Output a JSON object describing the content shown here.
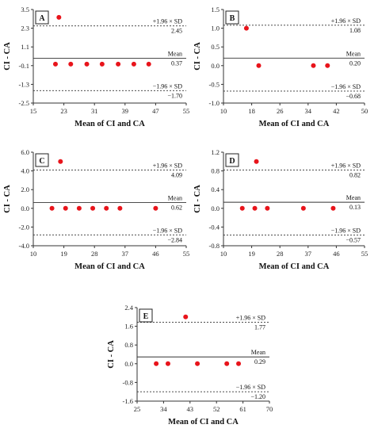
{
  "chart_data": [
    {
      "type": "scatter",
      "panel_label": "A",
      "xlabel": "Mean of CI and CA",
      "ylabel": "CI - CA",
      "xlim": [
        15,
        55
      ],
      "ylim": [
        -2.5,
        3.5
      ],
      "x_ticks": [
        15,
        23,
        31,
        39,
        47,
        55
      ],
      "y_ticks": [
        -2.5,
        -1.3,
        -0.1,
        1.1,
        2.3,
        3.5
      ],
      "y_tick_labels": [
        "-2.5",
        "-1.3",
        "-0.1",
        "1.1",
        "2.3",
        "3.5"
      ],
      "upper_loa_label": "+1.96 × SD",
      "upper_loa": 2.45,
      "upper_loa_text": "2.45",
      "mean_label": "Mean",
      "mean": 0.37,
      "mean_text": "0.37",
      "lower_loa_label": "−1.96 × SD",
      "lower_loa": -1.7,
      "lower_loa_text": "−1.70",
      "points": [
        [
          21.7,
          3.0
        ],
        [
          20.8,
          0.0
        ],
        [
          24.8,
          0.0
        ],
        [
          29.0,
          0.0
        ],
        [
          33.0,
          0.0
        ],
        [
          37.2,
          0.0
        ],
        [
          41.3,
          0.0
        ],
        [
          45.2,
          0.0
        ]
      ]
    },
    {
      "type": "scatter",
      "panel_label": "B",
      "xlabel": "Mean of CI and CA",
      "ylabel": "CI - CA",
      "xlim": [
        10,
        50
      ],
      "ylim": [
        -1.0,
        1.5
      ],
      "x_ticks": [
        10,
        18,
        26,
        34,
        42,
        50
      ],
      "y_ticks": [
        -1.0,
        -0.5,
        0.0,
        0.5,
        1.0,
        1.5
      ],
      "y_tick_labels": [
        "-1.0",
        "-0.5",
        "0.0",
        "0.5",
        "1.0",
        "1.5"
      ],
      "upper_loa_label": "+1.96 × SD",
      "upper_loa": 1.08,
      "upper_loa_text": "1.08",
      "mean_label": "Mean",
      "mean": 0.2,
      "mean_text": "0.20",
      "lower_loa_label": "−1.96 × SD",
      "lower_loa": -0.68,
      "lower_loa_text": "−0.68",
      "points": [
        [
          16.5,
          1.0
        ],
        [
          20.0,
          0.0
        ],
        [
          35.5,
          0.0
        ],
        [
          39.5,
          0.0
        ]
      ]
    },
    {
      "type": "scatter",
      "panel_label": "C",
      "xlabel": "Mean of CI and CA",
      "ylabel": "CI - CA",
      "xlim": [
        10,
        55
      ],
      "ylim": [
        -4.0,
        6.0
      ],
      "x_ticks": [
        10,
        19,
        28,
        37,
        46,
        55
      ],
      "y_ticks": [
        -4.0,
        -2.0,
        0.0,
        2.0,
        4.0,
        6.0
      ],
      "y_tick_labels": [
        "-4.0",
        "-2.0",
        "0.0",
        "2.0",
        "4.0",
        "6.0"
      ],
      "upper_loa_label": "+1.96 × SD",
      "upper_loa": 4.09,
      "upper_loa_text": "4.09",
      "mean_label": "Mean",
      "mean": 0.62,
      "mean_text": "0.62",
      "lower_loa_label": "−1.96 × SD",
      "lower_loa": -2.84,
      "lower_loa_text": "−2.84",
      "points": [
        [
          18.0,
          5.0
        ],
        [
          15.5,
          0.0
        ],
        [
          19.5,
          0.0
        ],
        [
          23.5,
          0.0
        ],
        [
          27.5,
          0.0
        ],
        [
          31.5,
          0.0
        ],
        [
          35.5,
          0.0
        ],
        [
          46.0,
          0.0
        ]
      ]
    },
    {
      "type": "scatter",
      "panel_label": "D",
      "xlabel": "Mean of CI and CA",
      "ylabel": "CI - CA",
      "xlim": [
        10,
        55
      ],
      "ylim": [
        -0.8,
        1.2
      ],
      "x_ticks": [
        10,
        19,
        28,
        37,
        46,
        55
      ],
      "y_ticks": [
        -0.8,
        -0.4,
        0.0,
        0.4,
        0.8,
        1.2
      ],
      "y_tick_labels": [
        "-0.8",
        "-0.4",
        "0.0",
        "0.4",
        "0.8",
        "1.2"
      ],
      "upper_loa_label": "+1.96 × SD",
      "upper_loa": 0.82,
      "upper_loa_text": "0.82",
      "mean_label": "Mean",
      "mean": 0.13,
      "mean_text": "0.13",
      "lower_loa_label": "−1.96 × SD",
      "lower_loa": -0.57,
      "lower_loa_text": "−0.57",
      "points": [
        [
          20.5,
          1.0
        ],
        [
          16.0,
          0.0
        ],
        [
          20.0,
          0.0
        ],
        [
          24.0,
          0.0
        ],
        [
          35.5,
          0.0
        ],
        [
          45.0,
          0.0
        ]
      ]
    },
    {
      "type": "scatter",
      "panel_label": "E",
      "xlabel": "Mean of CI and CA",
      "ylabel": "CI - CA",
      "xlim": [
        25,
        70
      ],
      "ylim": [
        -1.6,
        2.4
      ],
      "x_ticks": [
        25,
        34,
        43,
        52,
        61,
        70
      ],
      "y_ticks": [
        -1.6,
        -0.8,
        0.0,
        0.8,
        1.6,
        2.4
      ],
      "y_tick_labels": [
        "-1.6",
        "-0.8",
        "0.0",
        "0.8",
        "1.6",
        "2.4"
      ],
      "upper_loa_label": "+1.96 × SD",
      "upper_loa": 1.77,
      "upper_loa_text": "1.77",
      "mean_label": "Mean",
      "mean": 0.29,
      "mean_text": "0.29",
      "lower_loa_label": "−1.96 × SD",
      "lower_loa": -1.2,
      "lower_loa_text": "−1.20",
      "points": [
        [
          41.5,
          2.0
        ],
        [
          31.5,
          0.0
        ],
        [
          35.5,
          0.0
        ],
        [
          45.5,
          0.0
        ],
        [
          55.5,
          0.0
        ],
        [
          59.5,
          0.0
        ]
      ]
    }
  ],
  "colors": {
    "point": "#e8141b",
    "axis": "#333333",
    "text": "#111111"
  }
}
